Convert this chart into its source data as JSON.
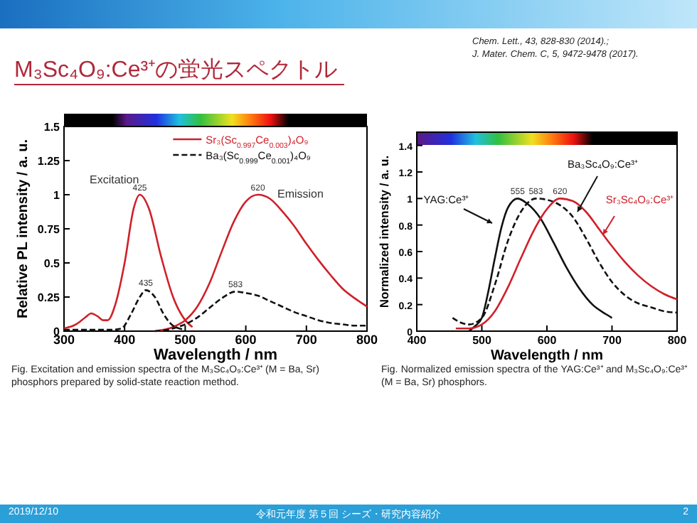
{
  "chart_data": [
    {
      "type": "line",
      "title": "M₃Sc₄O₉:Ce³⁺の蛍光スペクトル",
      "xlabel": "Wavelength / nm",
      "ylabel": "Relative PL intensity / a. u.",
      "xlim": [
        300,
        800
      ],
      "ylim": [
        0,
        1.5
      ],
      "xticks": [
        300,
        400,
        500,
        600,
        700,
        800
      ],
      "yticks": [
        0,
        0.25,
        0.5,
        0.75,
        1,
        1.25,
        1.5
      ],
      "legend": "top right",
      "series": [
        {
          "name": "Sr₃(Sc$_{0.997}$Ce$_{0.003}$)₄O₉",
          "color": "#d0202a",
          "line_style": "solid",
          "x": [
            300,
            320,
            335,
            345,
            355,
            365,
            372,
            385,
            400,
            415,
            425,
            440,
            460,
            480,
            500,
            512
          ],
          "values": [
            0.02,
            0.05,
            0.1,
            0.13,
            0.11,
            0.08,
            0.08,
            0.2,
            0.5,
            0.9,
            1.0,
            0.9,
            0.55,
            0.25,
            0.08,
            0.03
          ]
        },
        {
          "color": "#d0202a",
          "line_style": "solid",
          "x": [
            450,
            480,
            500,
            520,
            540,
            560,
            580,
            600,
            620,
            640,
            660,
            680,
            700,
            720,
            740,
            760,
            780,
            800
          ],
          "values": [
            0.0,
            0.03,
            0.08,
            0.18,
            0.35,
            0.58,
            0.8,
            0.95,
            1.0,
            0.97,
            0.88,
            0.77,
            0.64,
            0.52,
            0.41,
            0.31,
            0.24,
            0.18
          ]
        },
        {
          "name": "Ba₃(Sc$_{0.999}$Ce$_{0.001}$)₄O₉",
          "color": "#111111",
          "line_style": "dashed",
          "x": [
            300,
            340,
            380,
            395,
            410,
            425,
            435,
            450,
            465,
            480,
            500
          ],
          "values": [
            0.01,
            0.01,
            0.01,
            0.02,
            0.12,
            0.25,
            0.3,
            0.25,
            0.12,
            0.04,
            0.01
          ]
        },
        {
          "color": "#111111",
          "line_style": "dashed",
          "x": [
            450,
            480,
            500,
            520,
            540,
            560,
            583,
            600,
            620,
            640,
            660,
            680,
            700,
            720,
            740,
            760,
            780,
            800
          ],
          "values": [
            0.0,
            0.02,
            0.05,
            0.1,
            0.17,
            0.24,
            0.29,
            0.28,
            0.26,
            0.22,
            0.18,
            0.14,
            0.11,
            0.08,
            0.06,
            0.05,
            0.04,
            0.04
          ]
        }
      ],
      "annotations": [
        "Excitation",
        "Emission",
        {
          "text": "425",
          "x": 425,
          "y": 1.0
        },
        {
          "text": "620",
          "x": 620,
          "y": 1.0
        },
        {
          "text": "435",
          "x": 435,
          "y": 0.3
        },
        {
          "text": "583",
          "x": 583,
          "y": 0.29
        },
        "Chem. Lett., 43, 828-830 (2014).;",
        "J. Mater. Chem. C, 5, 9472-9478 (2017).",
        "Fig. Excitation and emission spectra of the M₃Sc₄O₉:Ce³⁺ (M = Ba, Sr) phosphors prepared by solid-state reaction method.",
        "2019/12/10",
        "令和元年度 第５回 シーズ・研究内容紹介",
        "2"
      ]
    },
    {
      "type": "line",
      "xlabel": "Wavelength / nm",
      "ylabel": "Normalized intensity / a. u.",
      "xlim": [
        400,
        800
      ],
      "ylim": [
        0,
        1.5
      ],
      "xticks": [
        400,
        500,
        600,
        700,
        800
      ],
      "yticks": [
        0,
        0.2,
        0.4,
        0.6,
        0.8,
        1,
        1.2,
        1.4
      ],
      "legend": false,
      "series": [
        {
          "name": "YAG:Ce³⁺",
          "color": "#111111",
          "line_style": "solid",
          "x": [
            480,
            490,
            500,
            510,
            520,
            530,
            540,
            555,
            570,
            590,
            610,
            630,
            650,
            670,
            690,
            700
          ],
          "values": [
            0.0,
            0.04,
            0.1,
            0.3,
            0.55,
            0.78,
            0.93,
            1.0,
            0.96,
            0.85,
            0.67,
            0.48,
            0.32,
            0.2,
            0.13,
            0.1
          ]
        },
        {
          "name": "Ba₃Sc₄O₉:Ce³⁺",
          "color": "#111111",
          "line_style": "dashed",
          "x": [
            455,
            470,
            480,
            500,
            520,
            540,
            560,
            583,
            600,
            620,
            640,
            660,
            680,
            700,
            720,
            740,
            760,
            780,
            800
          ],
          "values": [
            0.1,
            0.06,
            0.05,
            0.1,
            0.35,
            0.68,
            0.9,
            1.0,
            0.99,
            0.95,
            0.86,
            0.7,
            0.52,
            0.37,
            0.27,
            0.21,
            0.18,
            0.15,
            0.14
          ]
        },
        {
          "name": "Sr₃Sc₄O₉:Ce³⁺",
          "color": "#d0202a",
          "line_style": "solid",
          "x": [
            460,
            480,
            500,
            520,
            540,
            560,
            580,
            600,
            620,
            640,
            660,
            680,
            700,
            720,
            740,
            760,
            780,
            800
          ],
          "values": [
            0.02,
            0.02,
            0.05,
            0.15,
            0.33,
            0.55,
            0.76,
            0.92,
            1.0,
            0.98,
            0.9,
            0.77,
            0.64,
            0.52,
            0.42,
            0.34,
            0.28,
            0.24
          ]
        }
      ],
      "annotations": [
        {
          "text": "555",
          "x": 555,
          "y": 1.0
        },
        {
          "text": "583",
          "x": 583,
          "y": 1.0
        },
        {
          "text": "620",
          "x": 620,
          "y": 1.0
        },
        "Fig. Normalized emission spectra of the YAG:Ce³⁺ and M₃Sc₄O₉:Ce³⁺ (M = Ba, Sr) phosphors."
      ]
    }
  ]
}
